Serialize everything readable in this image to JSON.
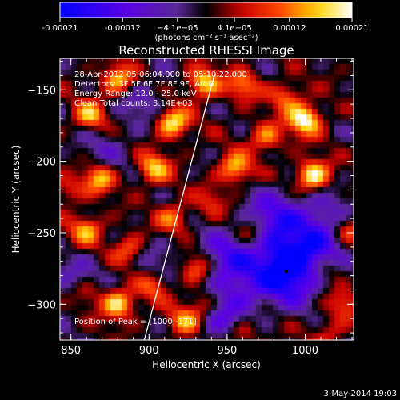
{
  "chart_data": {
    "type": "heatmap",
    "title": "Reconstructed RHESSI Image",
    "xlabel": "Heliocentric X (arcsec)",
    "ylabel": "Heliocentric Y (arcsec)",
    "xlim": [
      843,
      1031
    ],
    "ylim": [
      -325,
      -128
    ],
    "x_ticks": [
      850,
      900,
      950,
      1000
    ],
    "y_ticks": [
      -150,
      -200,
      -250,
      -300
    ],
    "colorbar": {
      "range": [
        -0.00021,
        0.00021
      ],
      "tick_values": [
        -0.00021,
        -0.00012,
        -4.1e-05,
        4.1e-05,
        0.00012,
        0.00021
      ],
      "tick_labels": [
        "-0.00021",
        "-0.00012",
        "−4.1e−05",
        "4.1e−05",
        "0.00012",
        "0.00021"
      ],
      "unit_label": "(photons cm⁻² s⁻¹ asec⁻²)"
    },
    "info_lines": [
      "28-Apr-2012 05:06:04.000 to 05:10:22.000",
      "Detectors: 3F 5F 6F 7F 8F 9F, Att 0",
      "Energy Range: 12.0 - 25.0 keV",
      "Clean   Total counts: 3.14E+03"
    ],
    "peak_label": "Position of Peak = [1000,-171]",
    "limb_line": [
      [
        897,
        -325
      ],
      [
        942,
        -139
      ]
    ],
    "hot_sources": [
      {
        "x": 880,
        "y": -143,
        "value": 0.00017
      },
      {
        "x": 935,
        "y": -145,
        "value": 0.00018
      },
      {
        "x": 915,
        "y": -173,
        "value": 0.0002
      },
      {
        "x": 862,
        "y": -168,
        "value": 0.00015
      },
      {
        "x": 960,
        "y": -147,
        "value": 0.00012
      },
      {
        "x": 1000,
        "y": -171,
        "value": 0.00021
      },
      {
        "x": 1005,
        "y": -210,
        "value": 0.00021
      },
      {
        "x": 955,
        "y": -205,
        "value": 0.00016
      },
      {
        "x": 975,
        "y": -183,
        "value": 0.00013
      },
      {
        "x": 903,
        "y": -205,
        "value": 0.00016
      },
      {
        "x": 868,
        "y": -212,
        "value": 0.00016
      },
      {
        "x": 915,
        "y": -240,
        "value": 0.00012
      },
      {
        "x": 848,
        "y": -220,
        "value": 8e-05
      },
      {
        "x": 860,
        "y": -248,
        "value": 0.00014
      },
      {
        "x": 887,
        "y": -262,
        "value": 0.00012
      },
      {
        "x": 880,
        "y": -300,
        "value": 0.00019
      },
      {
        "x": 903,
        "y": -287,
        "value": 0.00011
      },
      {
        "x": 860,
        "y": -292,
        "value": 0.0001
      },
      {
        "x": 930,
        "y": -275,
        "value": 0.00013
      },
      {
        "x": 935,
        "y": -300,
        "value": 0.0001
      },
      {
        "x": 923,
        "y": -312,
        "value": 0.00014
      },
      {
        "x": 960,
        "y": -320,
        "value": 9e-05
      },
      {
        "x": 1028,
        "y": -248,
        "value": 0.00011
      },
      {
        "x": 1015,
        "y": -275,
        "value": 8e-05
      },
      {
        "x": 1025,
        "y": -300,
        "value": 9e-05
      },
      {
        "x": 1015,
        "y": -320,
        "value": 7e-05
      },
      {
        "x": 965,
        "y": -250,
        "value": 8e-05
      },
      {
        "x": 940,
        "y": -228,
        "value": 7e-05
      },
      {
        "x": 988,
        "y": -155,
        "value": 0.00011
      }
    ],
    "cold_sources": [
      {
        "x": 980,
        "y": -238,
        "value": -0.00012
      },
      {
        "x": 985,
        "y": -265,
        "value": -0.00014
      },
      {
        "x": 990,
        "y": -282,
        "value": -0.00016
      },
      {
        "x": 950,
        "y": -268,
        "value": -0.00012
      },
      {
        "x": 1010,
        "y": -262,
        "value": -0.0001
      },
      {
        "x": 945,
        "y": -310,
        "value": -9e-05
      },
      {
        "x": 1010,
        "y": -240,
        "value": -9e-05
      },
      {
        "x": 855,
        "y": -285,
        "value": -7e-05
      },
      {
        "x": 895,
        "y": -158,
        "value": -6e-05
      },
      {
        "x": 870,
        "y": -195,
        "value": -5e-05
      },
      {
        "x": 905,
        "y": -270,
        "value": -5e-05
      },
      {
        "x": 960,
        "y": -290,
        "value": -8e-05
      }
    ]
  },
  "footer_date": "3-May-2014 19:03"
}
